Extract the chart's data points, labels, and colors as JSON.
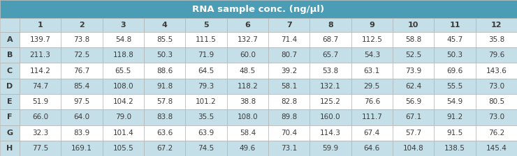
{
  "title": "RNA sample conc. (ng/μl)",
  "col_headers": [
    "",
    "1",
    "2",
    "3",
    "4",
    "5",
    "6",
    "7",
    "8",
    "9",
    "10",
    "11",
    "12"
  ],
  "row_headers": [
    "A",
    "B",
    "C",
    "D",
    "E",
    "F",
    "G",
    "H"
  ],
  "table_data": [
    [
      139.7,
      73.8,
      54.8,
      85.5,
      111.5,
      132.7,
      71.4,
      68.7,
      112.5,
      58.8,
      45.7,
      35.8
    ],
    [
      211.3,
      72.5,
      118.8,
      50.3,
      71.9,
      60.0,
      80.7,
      65.7,
      54.3,
      52.5,
      50.3,
      79.6
    ],
    [
      114.2,
      76.7,
      65.5,
      88.6,
      64.5,
      48.5,
      39.2,
      53.8,
      63.1,
      73.9,
      69.6,
      143.6
    ],
    [
      74.7,
      85.4,
      108.0,
      91.8,
      79.3,
      118.2,
      58.1,
      132.1,
      29.5,
      62.4,
      55.5,
      73.0
    ],
    [
      51.9,
      97.5,
      104.2,
      57.8,
      101.2,
      38.8,
      82.8,
      125.2,
      76.6,
      56.9,
      54.9,
      80.5
    ],
    [
      66.0,
      64.0,
      79.0,
      83.8,
      35.5,
      108.0,
      89.8,
      160.0,
      111.7,
      67.1,
      91.2,
      73.0
    ],
    [
      32.3,
      83.9,
      101.4,
      63.6,
      63.9,
      58.4,
      70.4,
      114.3,
      67.4,
      57.7,
      91.5,
      76.2
    ],
    [
      77.5,
      169.1,
      105.5,
      67.2,
      74.5,
      49.6,
      73.1,
      59.9,
      64.6,
      104.8,
      138.5,
      145.4
    ]
  ],
  "title_bg": "#4a9db5",
  "col_header_bg": "#c5dfe8",
  "row_header_bg": "#c5dfe8",
  "corner_bg": "#c5dfe8",
  "row_odd_bg": "#ffffff",
  "row_even_bg": "#c5dfe8",
  "text_color": "#3a3a3a",
  "title_text_color": "#ffffff",
  "header_text_color": "#3a3a3a",
  "edge_color": "#aaaaaa",
  "fig_width": 7.4,
  "fig_height": 2.24,
  "dpi": 100
}
